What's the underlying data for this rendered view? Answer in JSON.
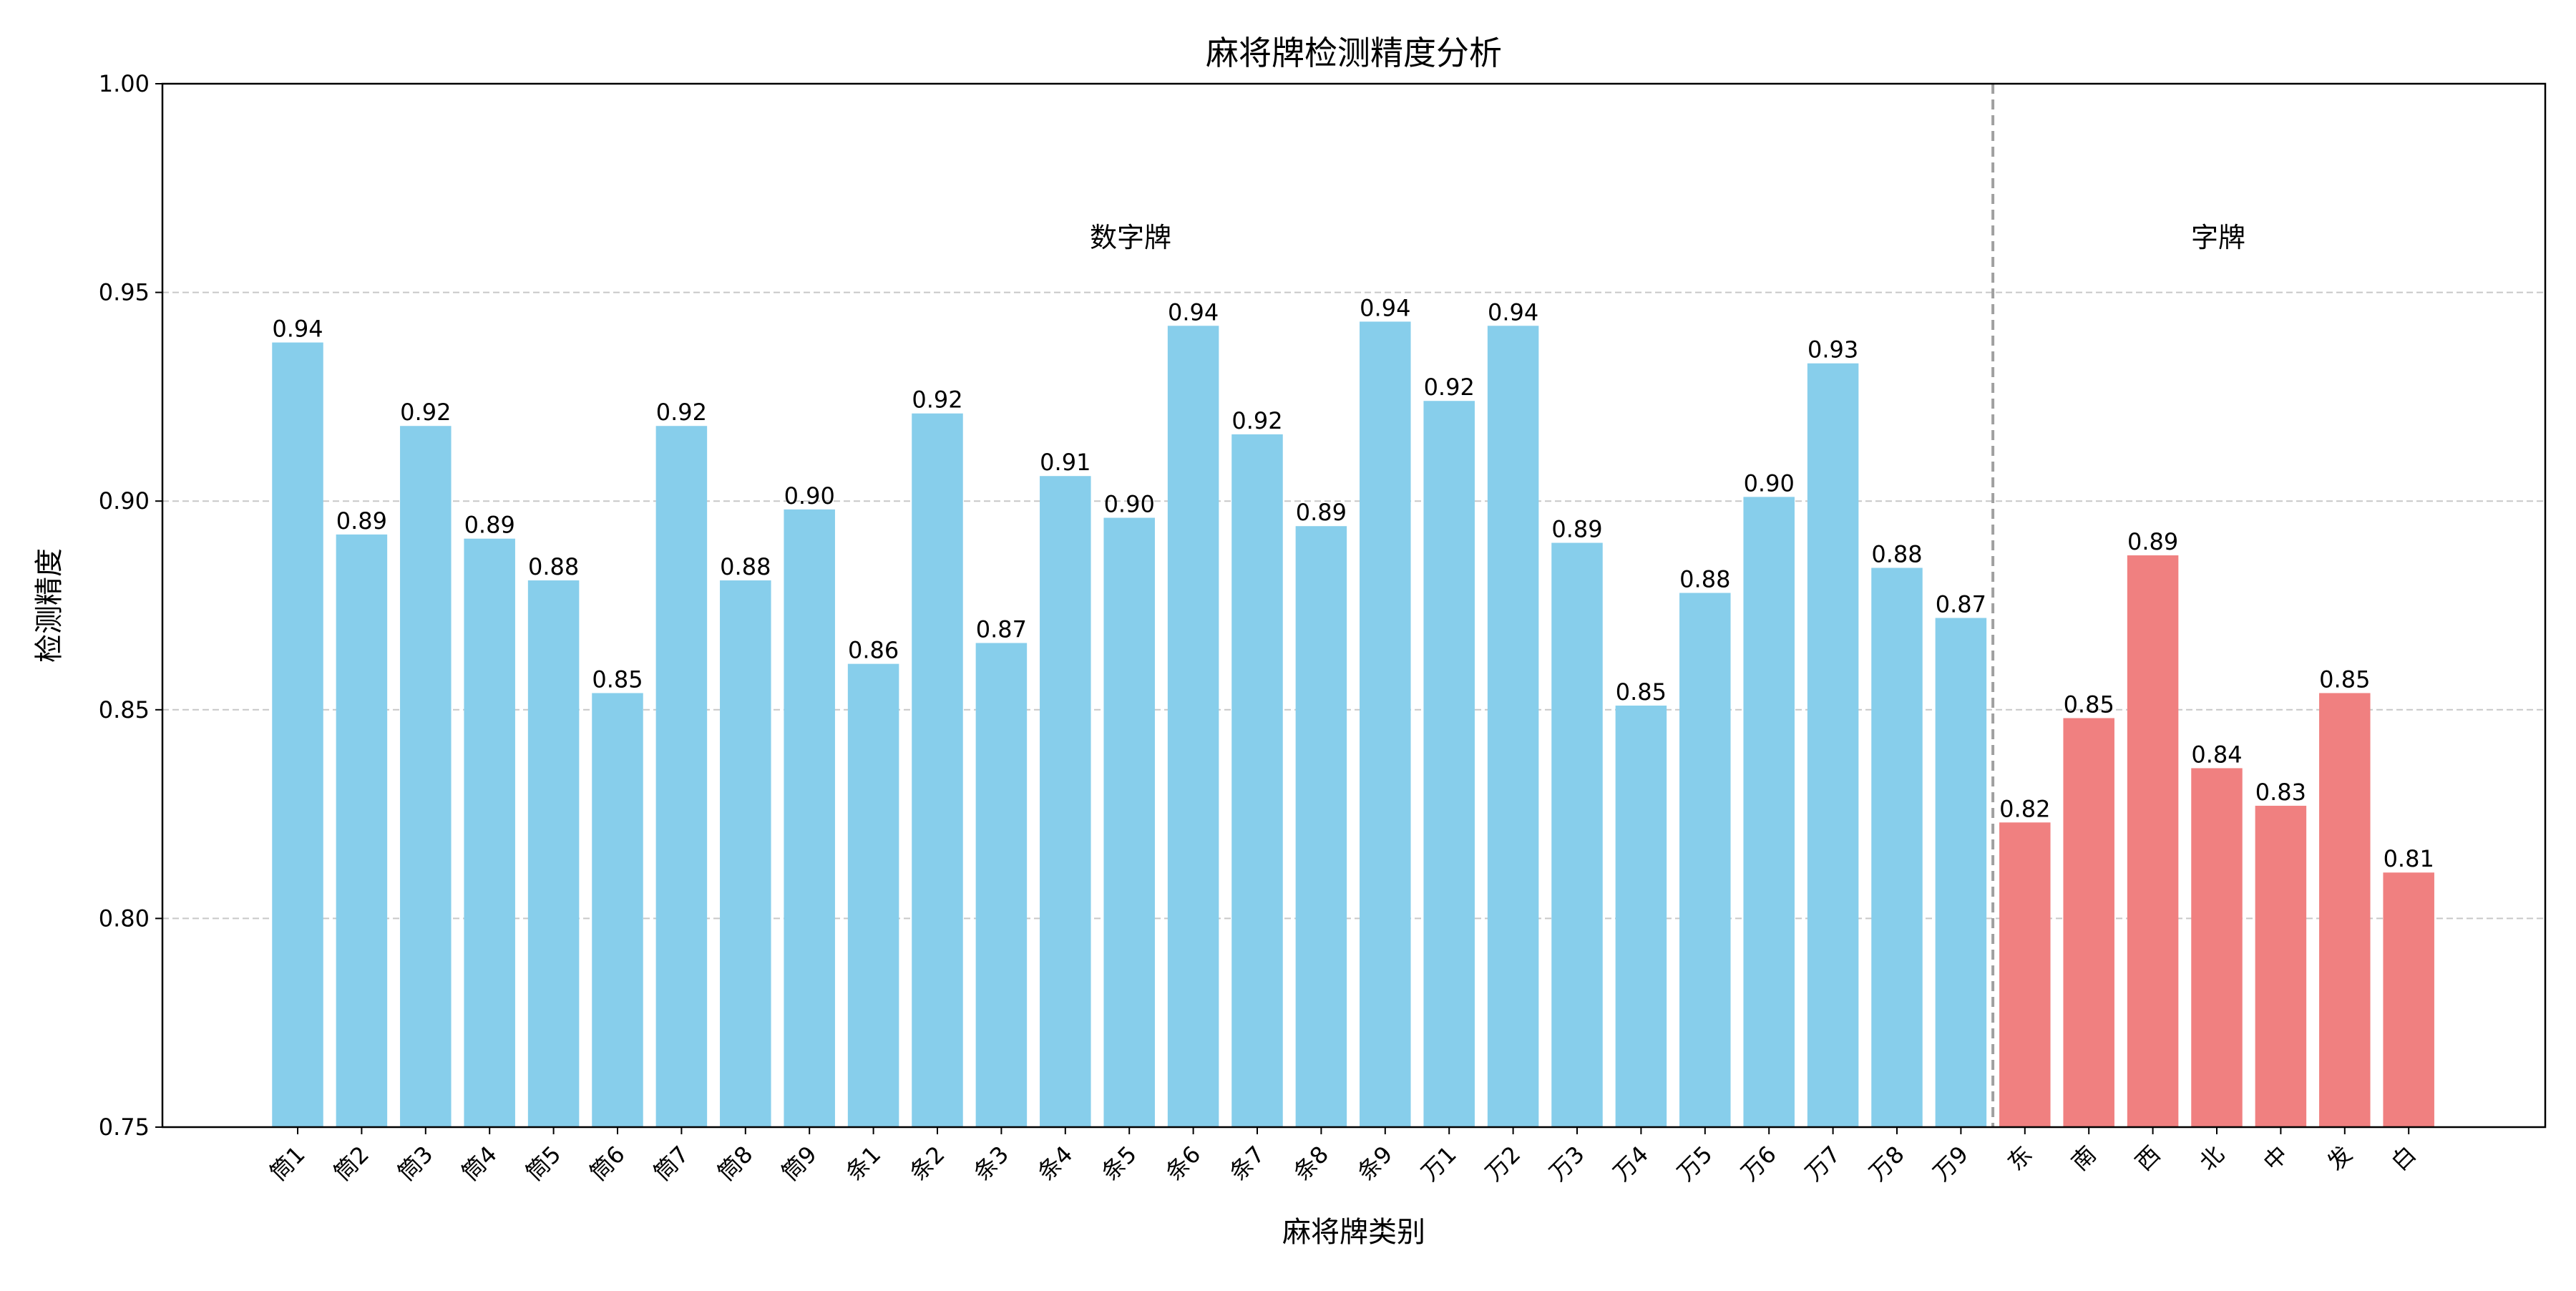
{
  "chart_data": {
    "type": "bar",
    "title": "麻将牌检测精度分析",
    "xlabel": "麻将牌类别",
    "ylabel": "检测精度",
    "ylim": [
      0.75,
      1.0
    ],
    "yticks": [
      "0.75",
      "0.80",
      "0.85",
      "0.90",
      "0.95",
      "1.00"
    ],
    "grid": "y-dashed",
    "categories": [
      "筒1",
      "筒2",
      "筒3",
      "筒4",
      "筒5",
      "筒6",
      "筒7",
      "筒8",
      "筒9",
      "条1",
      "条2",
      "条3",
      "条4",
      "条5",
      "条6",
      "条7",
      "条8",
      "条9",
      "万1",
      "万2",
      "万3",
      "万4",
      "万5",
      "万6",
      "万7",
      "万8",
      "万9",
      "东",
      "南",
      "西",
      "北",
      "中",
      "发",
      "白"
    ],
    "values": [
      0.938,
      0.892,
      0.918,
      0.891,
      0.881,
      0.854,
      0.918,
      0.881,
      0.898,
      0.861,
      0.921,
      0.866,
      0.906,
      0.896,
      0.942,
      0.916,
      0.894,
      0.943,
      0.924,
      0.942,
      0.89,
      0.851,
      0.878,
      0.901,
      0.933,
      0.884,
      0.872,
      0.823,
      0.848,
      0.887,
      0.836,
      0.827,
      0.854,
      0.811
    ],
    "data_labels": [
      "0.94",
      "0.89",
      "0.92",
      "0.89",
      "0.88",
      "0.85",
      "0.92",
      "0.88",
      "0.90",
      "0.86",
      "0.92",
      "0.87",
      "0.91",
      "0.90",
      "0.94",
      "0.92",
      "0.89",
      "0.94",
      "0.92",
      "0.94",
      "0.89",
      "0.85",
      "0.88",
      "0.90",
      "0.93",
      "0.88",
      "0.87",
      "0.82",
      "0.85",
      "0.89",
      "0.84",
      "0.83",
      "0.85",
      "0.81"
    ],
    "groups": [
      {
        "label": "数字牌",
        "count": 27,
        "color": "#87CEEB",
        "label_color": "#0000FF"
      },
      {
        "label": "字牌",
        "count": 7,
        "color": "#F08080",
        "label_color": "#FF0000"
      }
    ],
    "divider_color": "#A0A0A0"
  }
}
